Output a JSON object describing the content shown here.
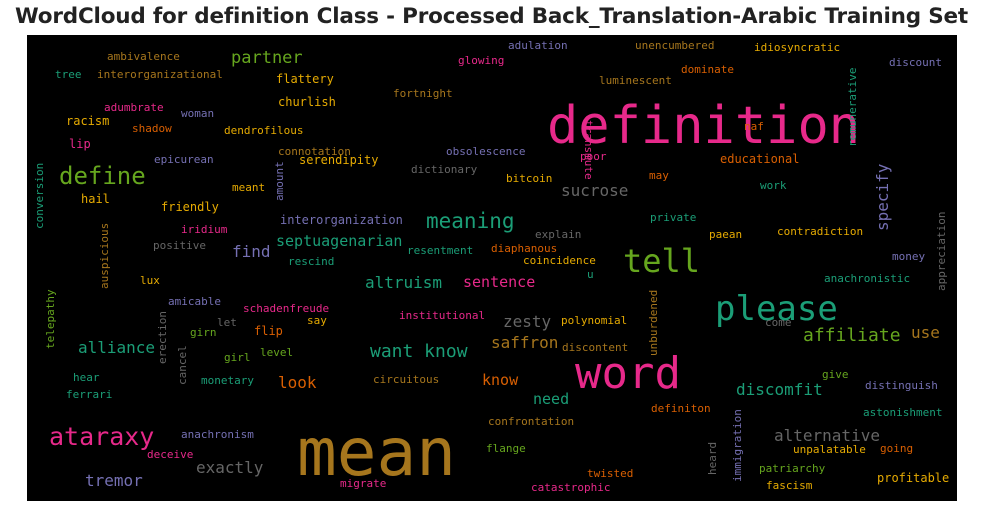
{
  "title": "WordCloud for definition Class - Processed Back_Translation-Arabic Training Set",
  "chart_data": {
    "type": "wordcloud",
    "title": "WordCloud for definition Class - Processed Back_Translation-Arabic Training Set",
    "background": "#000000",
    "colormap": "Dark2",
    "words": [
      {
        "text": "definition",
        "color": "#e7298a"
      },
      {
        "text": "mean",
        "color": "#a6761d"
      },
      {
        "text": "word",
        "color": "#e7298a"
      },
      {
        "text": "please",
        "color": "#1b9e77"
      },
      {
        "text": "tell",
        "color": "#66a61e"
      },
      {
        "text": "ataraxy",
        "color": "#e7298a"
      },
      {
        "text": "define",
        "color": "#66a61e"
      },
      {
        "text": "meaning",
        "color": "#1b9e77"
      },
      {
        "text": "want know",
        "color": "#1b9e77"
      },
      {
        "text": "affiliate",
        "color": "#66a61e"
      },
      {
        "text": "discomfit",
        "color": "#1b9e77"
      },
      {
        "text": "alternative",
        "color": "#666666"
      },
      {
        "text": "partner",
        "color": "#66a61e"
      },
      {
        "text": "sucrose",
        "color": "#666666"
      },
      {
        "text": "altruism",
        "color": "#1b9e77"
      },
      {
        "text": "sentence",
        "color": "#e7298a"
      },
      {
        "text": "septuagenarian",
        "color": "#1b9e77"
      },
      {
        "text": "exactly",
        "color": "#666666"
      },
      {
        "text": "tremor",
        "color": "#7570b3"
      },
      {
        "text": "alliance",
        "color": "#1b9e77"
      },
      {
        "text": "saffron",
        "color": "#a6761d"
      },
      {
        "text": "zesty",
        "color": "#666666"
      },
      {
        "text": "look",
        "color": "#d95f02"
      },
      {
        "text": "know",
        "color": "#d95f02"
      },
      {
        "text": "need",
        "color": "#1b9e77"
      },
      {
        "text": "find",
        "color": "#7570b3"
      },
      {
        "text": "specify",
        "color": "#7570b3"
      },
      {
        "text": "use",
        "color": "#a6761d"
      },
      {
        "text": "ambivalence",
        "color": "#a6761d"
      },
      {
        "text": "tree",
        "color": "#1b9e77"
      },
      {
        "text": "interorganizational",
        "color": "#a6761d"
      },
      {
        "text": "flattery",
        "color": "#e6ab02"
      },
      {
        "text": "churlish",
        "color": "#e6ab02"
      },
      {
        "text": "adumbrate",
        "color": "#e7298a"
      },
      {
        "text": "woman",
        "color": "#7570b3"
      },
      {
        "text": "racism",
        "color": "#e6ab02"
      },
      {
        "text": "shadow",
        "color": "#d95f02"
      },
      {
        "text": "dendrofilous",
        "color": "#e6ab02"
      },
      {
        "text": "lip",
        "color": "#e7298a"
      },
      {
        "text": "connotation",
        "color": "#a6761d"
      },
      {
        "text": "epicurean",
        "color": "#7570b3"
      },
      {
        "text": "meant",
        "color": "#e6ab02"
      },
      {
        "text": "amount",
        "color": "#7570b3"
      },
      {
        "text": "serendipity",
        "color": "#e6ab02"
      },
      {
        "text": "hail",
        "color": "#e6ab02"
      },
      {
        "text": "friendly",
        "color": "#e6ab02"
      },
      {
        "text": "interorganization",
        "color": "#7570b3"
      },
      {
        "text": "iridium",
        "color": "#e7298a"
      },
      {
        "text": "positive",
        "color": "#666666"
      },
      {
        "text": "auspicious",
        "color": "#a6761d"
      },
      {
        "text": "conversion",
        "color": "#1b9e77"
      },
      {
        "text": "telepathy",
        "color": "#66a61e"
      },
      {
        "text": "rescind",
        "color": "#1b9e77"
      },
      {
        "text": "lux",
        "color": "#e6ab02"
      },
      {
        "text": "amicable",
        "color": "#7570b3"
      },
      {
        "text": "schadenfreude",
        "color": "#e7298a"
      },
      {
        "text": "girn",
        "color": "#66a61e"
      },
      {
        "text": "let",
        "color": "#666666"
      },
      {
        "text": "flip",
        "color": "#d95f02"
      },
      {
        "text": "say",
        "color": "#e6ab02"
      },
      {
        "text": "girl",
        "color": "#66a61e"
      },
      {
        "text": "level",
        "color": "#66a61e"
      },
      {
        "text": "erection",
        "color": "#666666"
      },
      {
        "text": "hear",
        "color": "#1b9e77"
      },
      {
        "text": "monetary",
        "color": "#1b9e77"
      },
      {
        "text": "cancel",
        "color": "#666666"
      },
      {
        "text": "ferrari",
        "color": "#1b9e77"
      },
      {
        "text": "circuitous",
        "color": "#a6761d"
      },
      {
        "text": "institutional",
        "color": "#e7298a"
      },
      {
        "text": "polynomial",
        "color": "#e6ab02"
      },
      {
        "text": "discontent",
        "color": "#a6761d"
      },
      {
        "text": "unburdened",
        "color": "#a6761d"
      },
      {
        "text": "adulation",
        "color": "#7570b3"
      },
      {
        "text": "glowing",
        "color": "#e7298a"
      },
      {
        "text": "transmute",
        "color": "#e7298a"
      },
      {
        "text": "unencumbered",
        "color": "#a6761d"
      },
      {
        "text": "idiosyncratic",
        "color": "#e6ab02"
      },
      {
        "text": "discount",
        "color": "#7570b3"
      },
      {
        "text": "remunerative",
        "color": "#1b9e77"
      },
      {
        "text": "dominate",
        "color": "#d95f02"
      },
      {
        "text": "fortnight",
        "color": "#a6761d"
      },
      {
        "text": "luminescent",
        "color": "#a6761d"
      },
      {
        "text": "naf",
        "color": "#d95f02"
      },
      {
        "text": "obsolescence",
        "color": "#7570b3"
      },
      {
        "text": "poor",
        "color": "#e7298a"
      },
      {
        "text": "educational",
        "color": "#d95f02"
      },
      {
        "text": "dictionary",
        "color": "#666666"
      },
      {
        "text": "bitcoin",
        "color": "#e6ab02"
      },
      {
        "text": "may",
        "color": "#d95f02"
      },
      {
        "text": "work",
        "color": "#1b9e77"
      },
      {
        "text": "explain",
        "color": "#666666"
      },
      {
        "text": "private",
        "color": "#1b9e77"
      },
      {
        "text": "appreciation",
        "color": "#666666"
      },
      {
        "text": "resentment",
        "color": "#1b9e77"
      },
      {
        "text": "diaphanous",
        "color": "#d95f02"
      },
      {
        "text": "paean",
        "color": "#e6ab02"
      },
      {
        "text": "contradiction",
        "color": "#e6ab02"
      },
      {
        "text": "coincidence",
        "color": "#e6ab02"
      },
      {
        "text": "money",
        "color": "#7570b3"
      },
      {
        "text": "u",
        "color": "#1b9e77"
      },
      {
        "text": "anachronistic",
        "color": "#1b9e77"
      },
      {
        "text": "come",
        "color": "#666666"
      },
      {
        "text": "give",
        "color": "#66a61e"
      },
      {
        "text": "distinguish",
        "color": "#7570b3"
      },
      {
        "text": "astonishment",
        "color": "#1b9e77"
      },
      {
        "text": "confrontation",
        "color": "#a6761d"
      },
      {
        "text": "definiton",
        "color": "#d95f02"
      },
      {
        "text": "anachronism",
        "color": "#7570b3"
      },
      {
        "text": "deceive",
        "color": "#e7298a"
      },
      {
        "text": "flange",
        "color": "#66a61e"
      },
      {
        "text": "heard",
        "color": "#666666"
      },
      {
        "text": "immigration",
        "color": "#7570b3"
      },
      {
        "text": "unpalatable",
        "color": "#e6ab02"
      },
      {
        "text": "going",
        "color": "#d95f02"
      },
      {
        "text": "twisted",
        "color": "#d95f02"
      },
      {
        "text": "patriarchy",
        "color": "#66a61e"
      },
      {
        "text": "migrate",
        "color": "#e7298a"
      },
      {
        "text": "catastrophic",
        "color": "#e7298a"
      },
      {
        "text": "fascism",
        "color": "#e6ab02"
      },
      {
        "text": "profitable",
        "color": "#e6ab02"
      }
    ]
  }
}
